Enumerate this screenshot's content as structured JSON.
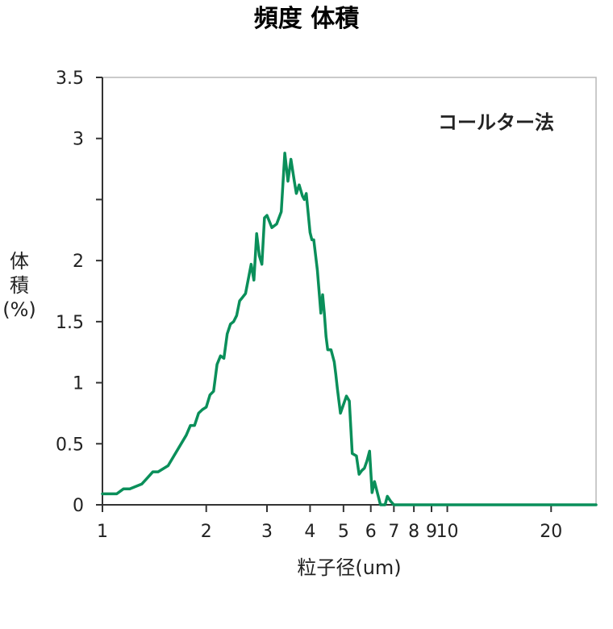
{
  "chart_data": {
    "type": "line",
    "title": "頻度 体積",
    "xlabel": "粒子径(um)",
    "ylabel_chars": [
      "体",
      "積",
      "(%)"
    ],
    "annotation": "コールター法",
    "x_scale": "log",
    "xlim": [
      1,
      27
    ],
    "ylim": [
      0,
      3.5
    ],
    "x_ticks": [
      1,
      2,
      3,
      4,
      5,
      6,
      7,
      8,
      9,
      10,
      20
    ],
    "x_tick_labels": [
      "1",
      "2",
      "3",
      "4",
      "5",
      "6",
      "7",
      "8",
      "9",
      "10",
      "20"
    ],
    "y_ticks": [
      0,
      0.5,
      1,
      1.5,
      2,
      2.5,
      3,
      3.5
    ],
    "y_tick_labels": [
      "0",
      "0.5",
      "1",
      "1.5",
      "2",
      "",
      "3",
      "3.5"
    ],
    "grid": false,
    "line_color": "#0a8f5a",
    "series": [
      {
        "x": [
          1.0,
          1.1,
          1.15,
          1.2,
          1.3,
          1.35,
          1.4,
          1.45,
          1.55,
          1.75,
          1.8,
          1.85,
          1.9,
          1.95,
          2.0,
          2.05,
          2.1,
          2.15,
          2.2,
          2.25,
          2.3,
          2.35,
          2.4,
          2.45,
          2.5,
          2.55,
          2.6,
          2.7,
          2.75,
          2.8,
          2.85,
          2.9,
          2.95,
          3.0,
          3.1,
          3.2,
          3.3,
          3.38,
          3.45,
          3.52,
          3.6,
          3.65,
          3.72,
          3.8,
          3.85,
          3.9,
          4.0,
          4.05,
          4.1,
          4.2,
          4.3,
          4.35,
          4.4,
          4.45,
          4.5,
          4.6,
          4.7,
          4.75,
          4.8,
          4.85,
          4.9,
          5.1,
          5.2,
          5.3,
          5.45,
          5.55,
          5.65,
          5.75,
          5.85,
          5.95,
          6.05,
          6.15,
          6.4,
          6.6,
          6.7,
          6.85,
          7.0,
          7.1,
          7.2,
          7.25,
          7.35,
          7.5,
          7.6,
          7.8,
          7.9,
          8.05,
          8.2,
          8.4,
          10,
          15,
          20,
          27
        ],
        "y": [
          0.09,
          0.09,
          0.13,
          0.13,
          0.17,
          0.22,
          0.27,
          0.27,
          0.32,
          0.57,
          0.65,
          0.65,
          0.75,
          0.78,
          0.8,
          0.9,
          0.93,
          1.15,
          1.22,
          1.2,
          1.4,
          1.48,
          1.5,
          1.55,
          1.67,
          1.7,
          1.73,
          1.97,
          1.84,
          2.22,
          2.04,
          1.97,
          2.35,
          2.37,
          2.27,
          2.3,
          2.4,
          2.88,
          2.65,
          2.83,
          2.65,
          2.55,
          2.62,
          2.53,
          2.5,
          2.55,
          2.23,
          2.17,
          2.17,
          1.92,
          1.57,
          1.72,
          1.57,
          1.38,
          1.27,
          1.27,
          1.17,
          1.07,
          0.95,
          0.85,
          0.75,
          0.89,
          0.85,
          0.42,
          0.4,
          0.25,
          0.28,
          0.3,
          0.36,
          0.44,
          0.1,
          0.19,
          0.0,
          0.0,
          0.07,
          0.03,
          0.0,
          0.0,
          0.0,
          0.0,
          0.0,
          0.0,
          0.0,
          0.0,
          0.0,
          0.0,
          0.0,
          0.0,
          0.0,
          0.0,
          0.0,
          0.0
        ]
      }
    ]
  }
}
